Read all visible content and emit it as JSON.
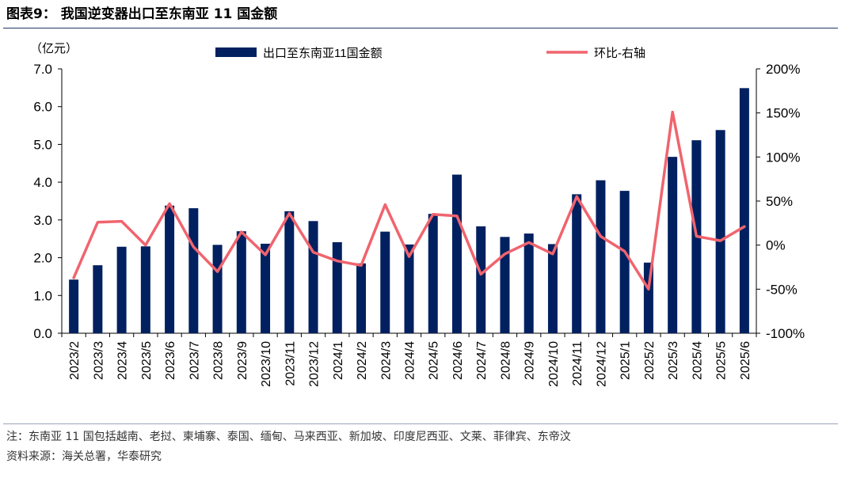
{
  "figure": {
    "title": "图表9： 我国逆变器出口至东南亚 11 国金额",
    "note": "注：东南亚 11 国包括越南、老挝、柬埔寨、泰国、缅甸、马来西亚、新加坡、印度尼西亚、文莱、菲律宾、东帝汶",
    "source": "资料来源：海关总署，华泰研究"
  },
  "chart_data": {
    "type": "bar",
    "categories": [
      "2023/2",
      "2023/3",
      "2023/4",
      "2023/5",
      "2023/6",
      "2023/7",
      "2023/8",
      "2023/9",
      "2023/10",
      "2023/11",
      "2023/12",
      "2024/1",
      "2024/2",
      "2024/3",
      "2024/4",
      "2024/5",
      "2024/6",
      "2024/7",
      "2024/8",
      "2024/9",
      "2024/10",
      "2024/11",
      "2024/12",
      "2025/1",
      "2025/2",
      "2025/3",
      "2025/4",
      "2025/5",
      "2025/6"
    ],
    "series": [
      {
        "name": "出口至东南亚11国金额",
        "type": "bar",
        "axis": "left",
        "color": "#002060",
        "values": [
          1.42,
          1.8,
          2.29,
          2.3,
          3.38,
          3.31,
          2.34,
          2.7,
          2.37,
          3.23,
          2.97,
          2.41,
          1.85,
          2.69,
          2.35,
          3.16,
          4.2,
          2.83,
          2.55,
          2.64,
          2.36,
          3.68,
          4.05,
          3.77,
          1.87,
          4.67,
          5.11,
          5.38,
          6.49
        ]
      },
      {
        "name": "环比-右轴",
        "type": "line",
        "axis": "right",
        "color": "#f0646e",
        "values": [
          -37,
          26,
          27,
          0,
          47,
          -2,
          -30,
          15,
          -11,
          36,
          -8,
          -18,
          -23,
          46,
          -13,
          35,
          33,
          -33,
          -10,
          3,
          -10,
          55,
          10,
          -7,
          -50,
          151,
          10,
          5,
          21
        ]
      }
    ],
    "ylabel": "（亿元）",
    "ylim": [
      0,
      7
    ],
    "yticks": [
      "0.0",
      "1.0",
      "2.0",
      "3.0",
      "4.0",
      "5.0",
      "6.0",
      "7.0"
    ],
    "y2lim": [
      -100,
      200
    ],
    "y2ticks": [
      "-100%",
      "-50%",
      "0%",
      "50%",
      "100%",
      "150%",
      "200%"
    ],
    "legend": "top",
    "grid": false
  }
}
